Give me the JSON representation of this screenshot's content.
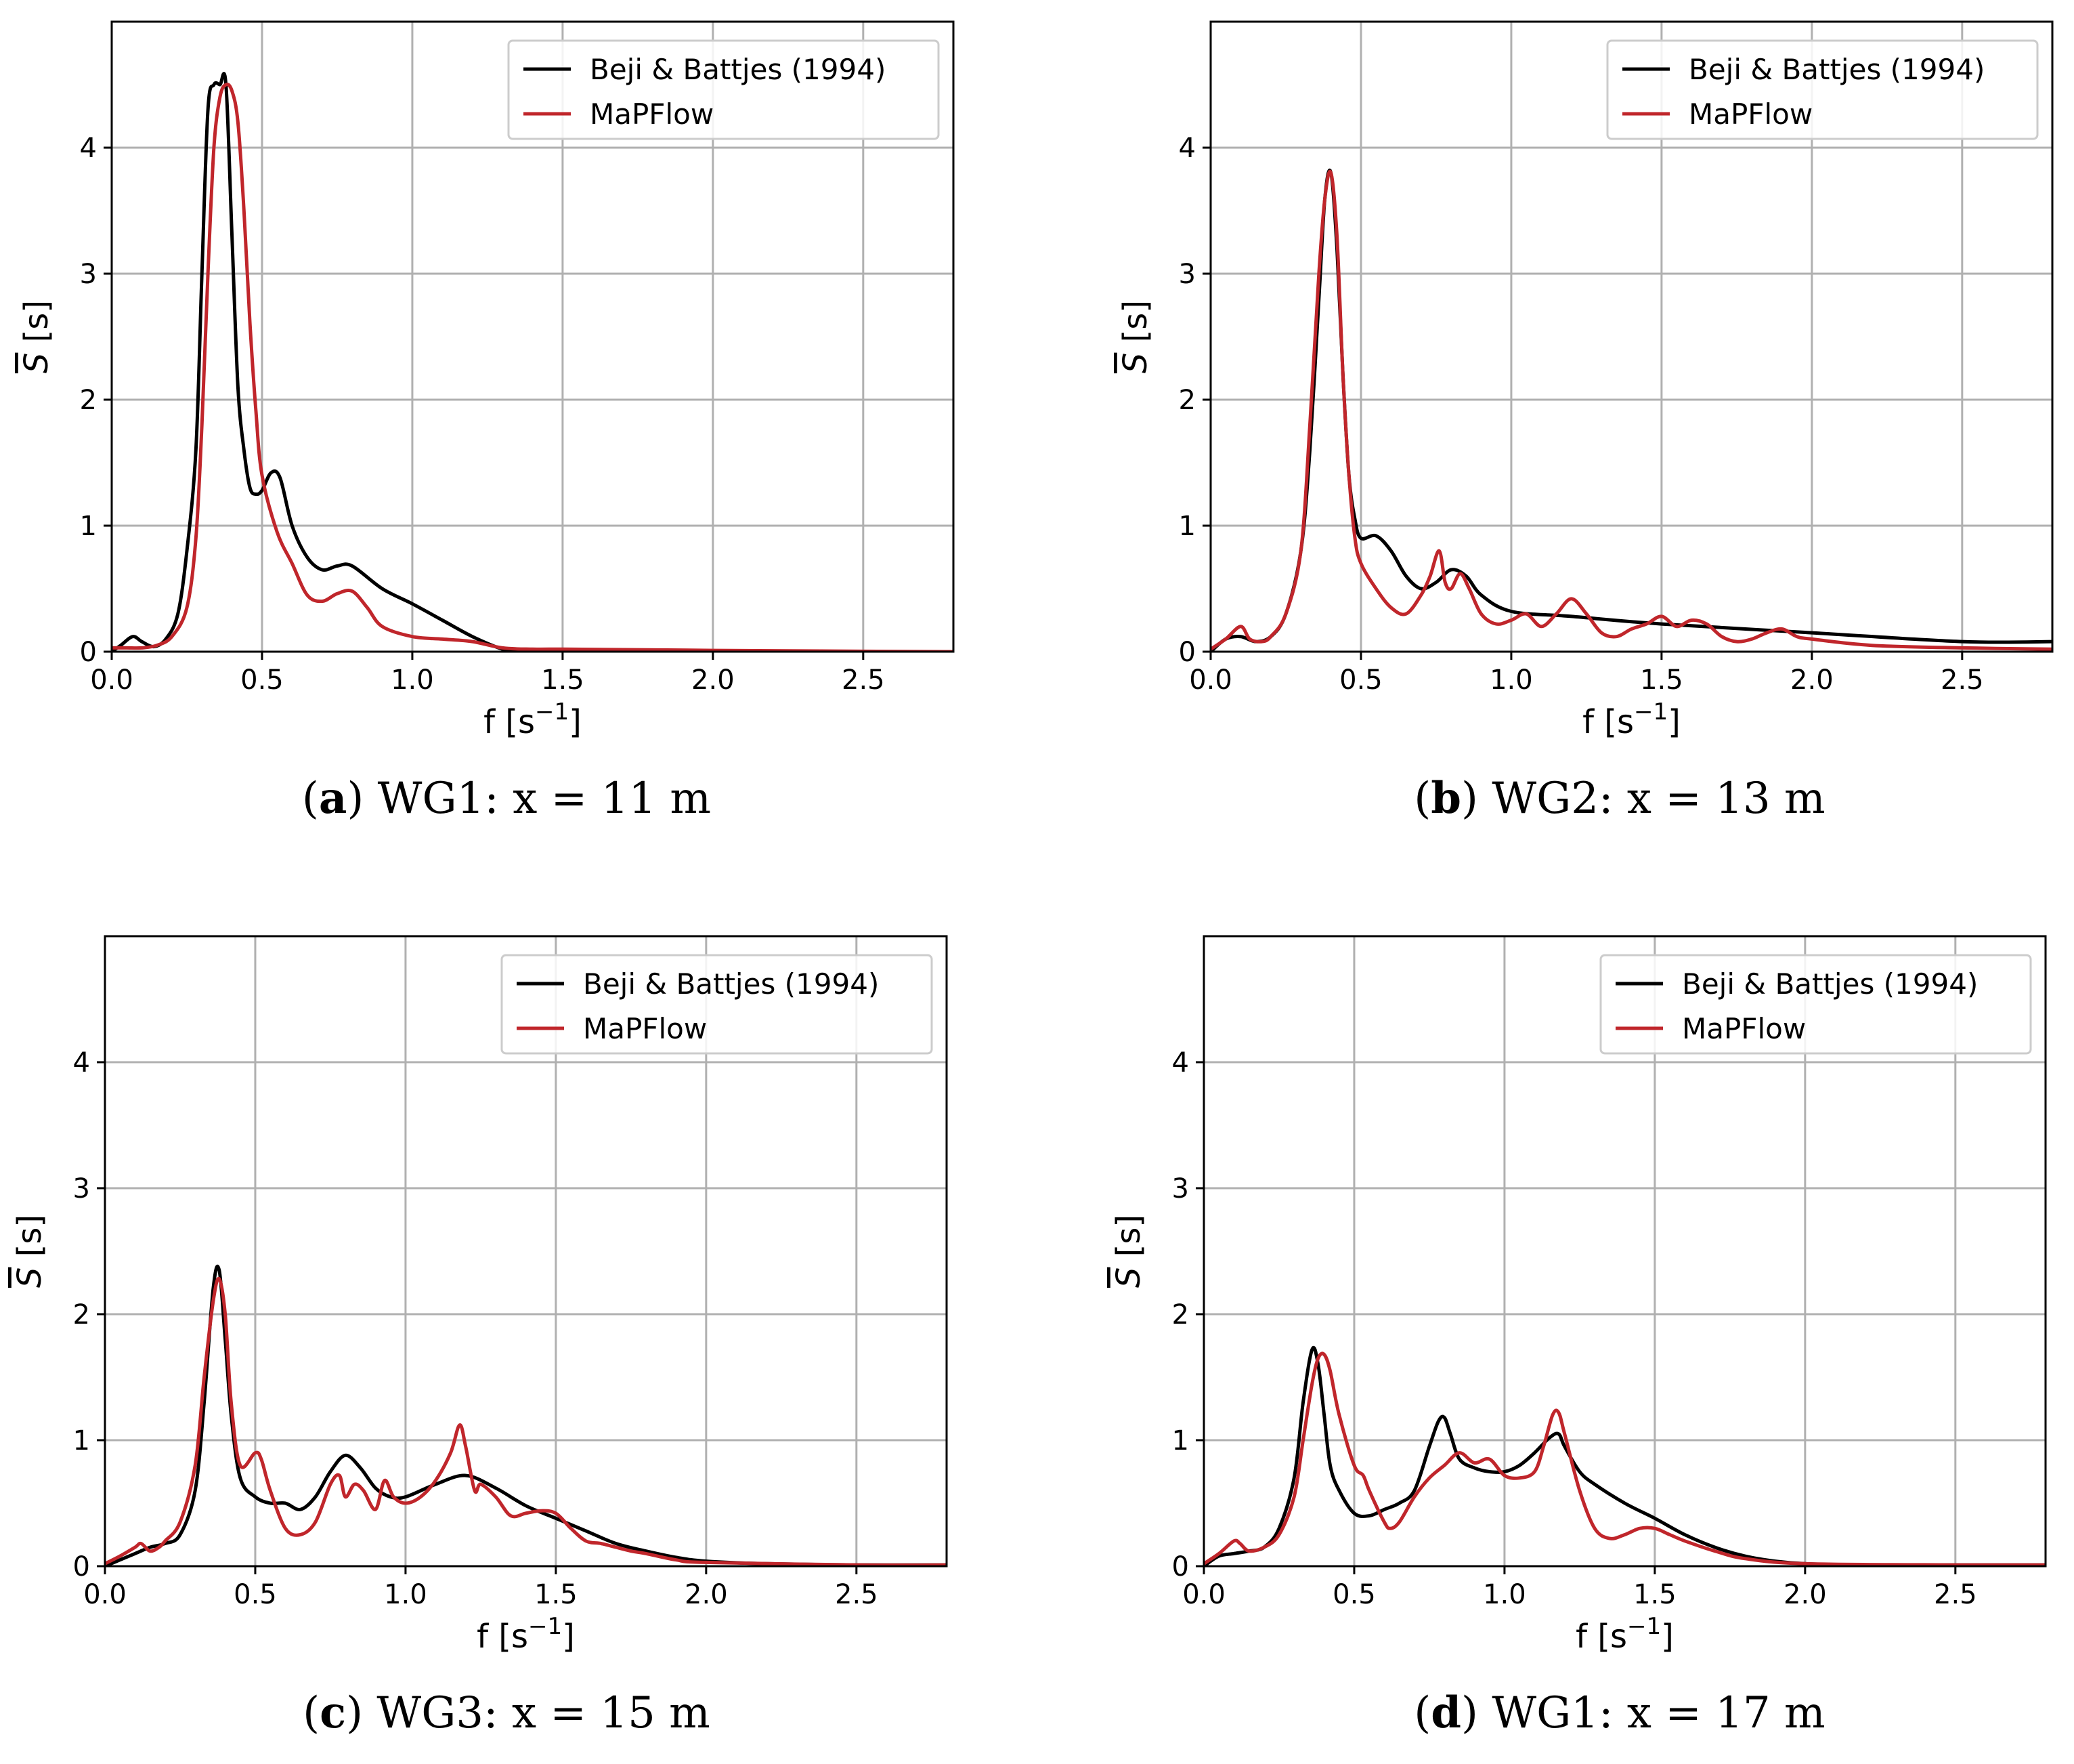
{
  "colors": {
    "reference": "#000000",
    "mapflow": "#c0262b",
    "grid": "#b0b0b0"
  },
  "legend": {
    "reference": "Beji & Battjes (1994)",
    "mapflow": "MaPFlow"
  },
  "axes": {
    "xlabel": "f [s",
    "xlabel_exp": "−1",
    "xlabel_close": "]",
    "ylabel_sym": "S",
    "ylabel_unit": " [s]",
    "xticks": [
      "0.0",
      "0.5",
      "1.0",
      "1.5",
      "2.0",
      "2.5"
    ],
    "yticks": [
      "0",
      "1",
      "2",
      "3",
      "4"
    ]
  },
  "chart_data": [
    {
      "type": "line",
      "caption_letter": "a",
      "caption_text": " WG1: x = 11 m",
      "xlabel": "f [s^-1]",
      "ylabel": "S̄ [s]",
      "xlim": [
        0,
        2.8
      ],
      "ylim": [
        0,
        5
      ],
      "legend_position": "top-right",
      "series": [
        {
          "name": "Beji & Battjes (1994)",
          "x": [
            0,
            0.03,
            0.07,
            0.1,
            0.14,
            0.18,
            0.22,
            0.25,
            0.28,
            0.3,
            0.32,
            0.34,
            0.36,
            0.38,
            0.4,
            0.42,
            0.44,
            0.46,
            0.48,
            0.5,
            0.53,
            0.56,
            0.6,
            0.65,
            0.7,
            0.75,
            0.8,
            0.9,
            1.0,
            1.1,
            1.2,
            1.3,
            1.35,
            1.5,
            2.0,
            2.5,
            2.8
          ],
          "y": [
            0,
            0.05,
            0.12,
            0.08,
            0.04,
            0.1,
            0.3,
            0.8,
            1.6,
            3.0,
            4.3,
            4.5,
            4.5,
            4.5,
            3.3,
            2.1,
            1.6,
            1.3,
            1.25,
            1.28,
            1.42,
            1.38,
            1.0,
            0.75,
            0.65,
            0.68,
            0.68,
            0.5,
            0.38,
            0.25,
            0.12,
            0.02,
            0,
            0,
            0,
            0,
            0
          ]
        },
        {
          "name": "MaPFlow",
          "x": [
            0,
            0.05,
            0.1,
            0.15,
            0.2,
            0.25,
            0.28,
            0.3,
            0.32,
            0.34,
            0.36,
            0.38,
            0.4,
            0.42,
            0.44,
            0.46,
            0.48,
            0.5,
            0.55,
            0.6,
            0.65,
            0.7,
            0.75,
            0.8,
            0.85,
            0.9,
            1.0,
            1.1,
            1.2,
            1.3,
            1.4,
            1.5,
            2.0,
            2.8
          ],
          "y": [
            0.03,
            0.03,
            0.03,
            0.05,
            0.12,
            0.35,
            0.9,
            1.8,
            3.0,
            4.0,
            4.4,
            4.5,
            4.45,
            4.2,
            3.5,
            2.6,
            1.9,
            1.4,
            0.95,
            0.7,
            0.45,
            0.4,
            0.46,
            0.48,
            0.35,
            0.2,
            0.12,
            0.1,
            0.08,
            0.03,
            0.02,
            0.02,
            0.01,
            0
          ]
        }
      ]
    },
    {
      "type": "line",
      "caption_letter": "b",
      "caption_text": " WG2: x = 13 m",
      "xlabel": "f [s^-1]",
      "ylabel": "S̄ [s]",
      "xlim": [
        0,
        2.8
      ],
      "ylim": [
        0,
        5
      ],
      "legend_position": "top-right",
      "series": [
        {
          "name": "Beji & Battjes (1994)",
          "x": [
            0,
            0.05,
            0.1,
            0.15,
            0.2,
            0.25,
            0.3,
            0.33,
            0.36,
            0.38,
            0.4,
            0.42,
            0.44,
            0.46,
            0.48,
            0.5,
            0.55,
            0.6,
            0.65,
            0.7,
            0.75,
            0.8,
            0.85,
            0.9,
            1.0,
            1.2,
            1.5,
            2.0,
            2.5,
            2.8
          ],
          "y": [
            0,
            0.1,
            0.12,
            0.08,
            0.12,
            0.3,
            0.8,
            1.6,
            2.8,
            3.6,
            3.8,
            3.2,
            2.2,
            1.4,
            1.05,
            0.9,
            0.92,
            0.8,
            0.6,
            0.5,
            0.55,
            0.65,
            0.6,
            0.45,
            0.32,
            0.28,
            0.22,
            0.15,
            0.08,
            0.08
          ]
        },
        {
          "name": "MaPFlow",
          "x": [
            0,
            0.05,
            0.1,
            0.13,
            0.17,
            0.2,
            0.25,
            0.3,
            0.33,
            0.36,
            0.38,
            0.4,
            0.42,
            0.44,
            0.46,
            0.48,
            0.5,
            0.55,
            0.6,
            0.65,
            0.7,
            0.73,
            0.76,
            0.78,
            0.8,
            0.83,
            0.86,
            0.9,
            0.95,
            1.0,
            1.05,
            1.1,
            1.15,
            1.2,
            1.25,
            1.3,
            1.35,
            1.4,
            1.45,
            1.5,
            1.55,
            1.6,
            1.65,
            1.7,
            1.75,
            1.8,
            1.85,
            1.9,
            1.95,
            2.0,
            2.2,
            2.5,
            2.8
          ],
          "y": [
            0.02,
            0.1,
            0.2,
            0.1,
            0.08,
            0.12,
            0.3,
            0.8,
            1.8,
            3.0,
            3.6,
            3.8,
            3.3,
            2.2,
            1.4,
            0.9,
            0.7,
            0.5,
            0.35,
            0.3,
            0.45,
            0.6,
            0.8,
            0.55,
            0.5,
            0.62,
            0.5,
            0.3,
            0.22,
            0.25,
            0.3,
            0.2,
            0.3,
            0.42,
            0.3,
            0.15,
            0.12,
            0.18,
            0.22,
            0.28,
            0.2,
            0.25,
            0.22,
            0.12,
            0.08,
            0.1,
            0.15,
            0.18,
            0.12,
            0.1,
            0.05,
            0.03,
            0.02
          ]
        }
      ]
    },
    {
      "type": "line",
      "caption_letter": "c",
      "caption_text": " WG3: x = 15 m",
      "xlabel": "f [s^-1]",
      "ylabel": "S̄ [s]",
      "xlim": [
        0,
        2.8
      ],
      "ylim": [
        0,
        5
      ],
      "legend_position": "top-right",
      "series": [
        {
          "name": "Beji & Battjes (1994)",
          "x": [
            0,
            0.05,
            0.1,
            0.15,
            0.2,
            0.25,
            0.3,
            0.33,
            0.36,
            0.38,
            0.4,
            0.42,
            0.45,
            0.5,
            0.55,
            0.6,
            0.65,
            0.7,
            0.75,
            0.8,
            0.85,
            0.9,
            0.95,
            1.0,
            1.1,
            1.2,
            1.3,
            1.4,
            1.5,
            1.6,
            1.7,
            1.8,
            1.9,
            2.0,
            2.2,
            2.5,
            2.8
          ],
          "y": [
            0,
            0.05,
            0.1,
            0.15,
            0.18,
            0.25,
            0.6,
            1.3,
            2.2,
            2.35,
            1.8,
            1.2,
            0.7,
            0.55,
            0.5,
            0.5,
            0.45,
            0.55,
            0.75,
            0.88,
            0.78,
            0.62,
            0.55,
            0.55,
            0.65,
            0.72,
            0.62,
            0.48,
            0.38,
            0.28,
            0.18,
            0.12,
            0.07,
            0.04,
            0.02,
            0.01,
            0.01
          ]
        },
        {
          "name": "MaPFlow",
          "x": [
            0,
            0.05,
            0.1,
            0.12,
            0.15,
            0.18,
            0.2,
            0.25,
            0.3,
            0.33,
            0.36,
            0.38,
            0.4,
            0.42,
            0.45,
            0.5,
            0.52,
            0.55,
            0.6,
            0.65,
            0.7,
            0.75,
            0.78,
            0.8,
            0.83,
            0.86,
            0.9,
            0.93,
            0.96,
            1.0,
            1.05,
            1.1,
            1.15,
            1.18,
            1.2,
            1.23,
            1.25,
            1.3,
            1.35,
            1.4,
            1.45,
            1.5,
            1.55,
            1.6,
            1.65,
            1.7,
            1.75,
            1.8,
            1.9,
            2.0,
            2.5,
            2.8
          ],
          "y": [
            0.02,
            0.08,
            0.15,
            0.18,
            0.12,
            0.15,
            0.2,
            0.35,
            0.8,
            1.5,
            2.1,
            2.28,
            2.0,
            1.3,
            0.8,
            0.9,
            0.85,
            0.6,
            0.3,
            0.25,
            0.35,
            0.65,
            0.72,
            0.55,
            0.65,
            0.6,
            0.45,
            0.68,
            0.55,
            0.5,
            0.55,
            0.68,
            0.9,
            1.12,
            0.95,
            0.6,
            0.65,
            0.55,
            0.4,
            0.42,
            0.44,
            0.42,
            0.3,
            0.2,
            0.18,
            0.15,
            0.12,
            0.1,
            0.05,
            0.03,
            0.01,
            0.01
          ]
        }
      ]
    },
    {
      "type": "line",
      "caption_letter": "d",
      "caption_text": " WG1: x = 17 m",
      "xlabel": "f [s^-1]",
      "ylabel": "S̄ [s]",
      "xlim": [
        0,
        2.8
      ],
      "ylim": [
        0,
        5
      ],
      "legend_position": "top-right",
      "series": [
        {
          "name": "Beji & Battjes (1994)",
          "x": [
            0,
            0.05,
            0.1,
            0.15,
            0.2,
            0.25,
            0.3,
            0.33,
            0.36,
            0.38,
            0.4,
            0.42,
            0.45,
            0.5,
            0.55,
            0.6,
            0.65,
            0.7,
            0.75,
            0.78,
            0.8,
            0.82,
            0.85,
            0.9,
            0.95,
            1.0,
            1.05,
            1.1,
            1.15,
            1.18,
            1.2,
            1.25,
            1.3,
            1.4,
            1.5,
            1.6,
            1.7,
            1.8,
            1.9,
            2.0,
            2.2,
            2.5,
            2.8
          ],
          "y": [
            0,
            0.08,
            0.1,
            0.12,
            0.15,
            0.3,
            0.7,
            1.3,
            1.72,
            1.6,
            1.2,
            0.8,
            0.6,
            0.42,
            0.4,
            0.45,
            0.5,
            0.6,
            0.95,
            1.15,
            1.18,
            1.05,
            0.85,
            0.78,
            0.75,
            0.75,
            0.8,
            0.9,
            1.02,
            1.05,
            0.95,
            0.75,
            0.65,
            0.5,
            0.38,
            0.25,
            0.15,
            0.08,
            0.04,
            0.02,
            0.01,
            0.01,
            0.01
          ]
        },
        {
          "name": "MaPFlow",
          "x": [
            0,
            0.05,
            0.1,
            0.12,
            0.15,
            0.2,
            0.25,
            0.3,
            0.33,
            0.36,
            0.38,
            0.4,
            0.42,
            0.45,
            0.5,
            0.53,
            0.55,
            0.6,
            0.62,
            0.65,
            0.7,
            0.75,
            0.8,
            0.85,
            0.9,
            0.95,
            1.0,
            1.05,
            1.1,
            1.13,
            1.16,
            1.18,
            1.2,
            1.25,
            1.3,
            1.35,
            1.4,
            1.45,
            1.5,
            1.55,
            1.6,
            1.7,
            1.8,
            2.0,
            2.5,
            2.8
          ],
          "y": [
            0.02,
            0.1,
            0.2,
            0.18,
            0.12,
            0.15,
            0.25,
            0.55,
            1.0,
            1.45,
            1.65,
            1.68,
            1.55,
            1.2,
            0.8,
            0.72,
            0.6,
            0.35,
            0.3,
            0.35,
            0.55,
            0.7,
            0.8,
            0.9,
            0.82,
            0.85,
            0.72,
            0.7,
            0.75,
            0.95,
            1.2,
            1.22,
            1.05,
            0.6,
            0.3,
            0.22,
            0.25,
            0.3,
            0.3,
            0.25,
            0.2,
            0.12,
            0.06,
            0.02,
            0.01,
            0.01
          ]
        }
      ]
    }
  ]
}
